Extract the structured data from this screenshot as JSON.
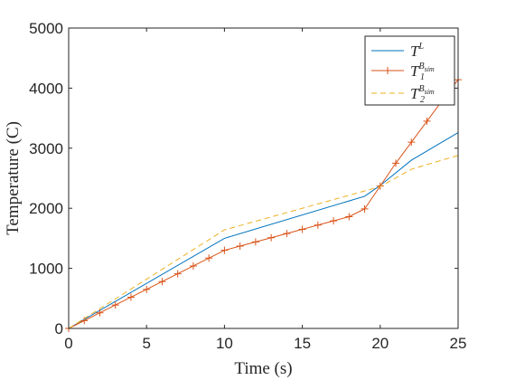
{
  "chart_data": {
    "type": "line",
    "title": "",
    "xlabel": "Time (s)",
    "ylabel": "Temperature (C)",
    "xlim": [
      0,
      25
    ],
    "ylim": [
      0,
      5000
    ],
    "x_ticks": [
      0,
      5,
      10,
      15,
      20,
      25
    ],
    "y_ticks": [
      0,
      1000,
      2000,
      3000,
      4000,
      5000
    ],
    "grid": false,
    "legend_position": "top-right",
    "series": [
      {
        "name": "T^L",
        "legend": {
          "base": "T",
          "sup": "L",
          "sub": ""
        },
        "color": "#0072BD",
        "style": "solid",
        "marker": "none",
        "points": [
          [
            0,
            0
          ],
          [
            10,
            1500
          ],
          [
            19,
            2200
          ],
          [
            20,
            2380
          ],
          [
            22,
            2800
          ],
          [
            25,
            3260
          ]
        ]
      },
      {
        "name": "T_1^{B_sim}",
        "legend": {
          "base": "T",
          "sup": "B",
          "supsub": "sim",
          "sub": "1"
        },
        "color": "#D95319",
        "style": "solid",
        "marker": "plus",
        "points": [
          [
            0,
            0
          ],
          [
            1,
            130
          ],
          [
            2,
            260
          ],
          [
            3,
            390
          ],
          [
            4,
            520
          ],
          [
            5,
            650
          ],
          [
            6,
            780
          ],
          [
            7,
            910
          ],
          [
            8,
            1040
          ],
          [
            9,
            1170
          ],
          [
            10,
            1300
          ],
          [
            11,
            1370
          ],
          [
            12,
            1440
          ],
          [
            13,
            1510
          ],
          [
            14,
            1580
          ],
          [
            15,
            1650
          ],
          [
            16,
            1720
          ],
          [
            17,
            1790
          ],
          [
            18,
            1860
          ],
          [
            19,
            1990
          ],
          [
            20,
            2370
          ],
          [
            21,
            2750
          ],
          [
            22,
            3100
          ],
          [
            23,
            3450
          ],
          [
            24,
            3800
          ],
          [
            25,
            4140
          ]
        ]
      },
      {
        "name": "T_2^{B_sim}",
        "legend": {
          "base": "T",
          "sup": "B",
          "supsub": "sim",
          "sub": "2"
        },
        "color": "#EDB120",
        "style": "dashed",
        "marker": "none",
        "points": [
          [
            0,
            0
          ],
          [
            10,
            1640
          ],
          [
            20,
            2360
          ],
          [
            22,
            2650
          ],
          [
            25,
            2880
          ]
        ]
      }
    ]
  }
}
